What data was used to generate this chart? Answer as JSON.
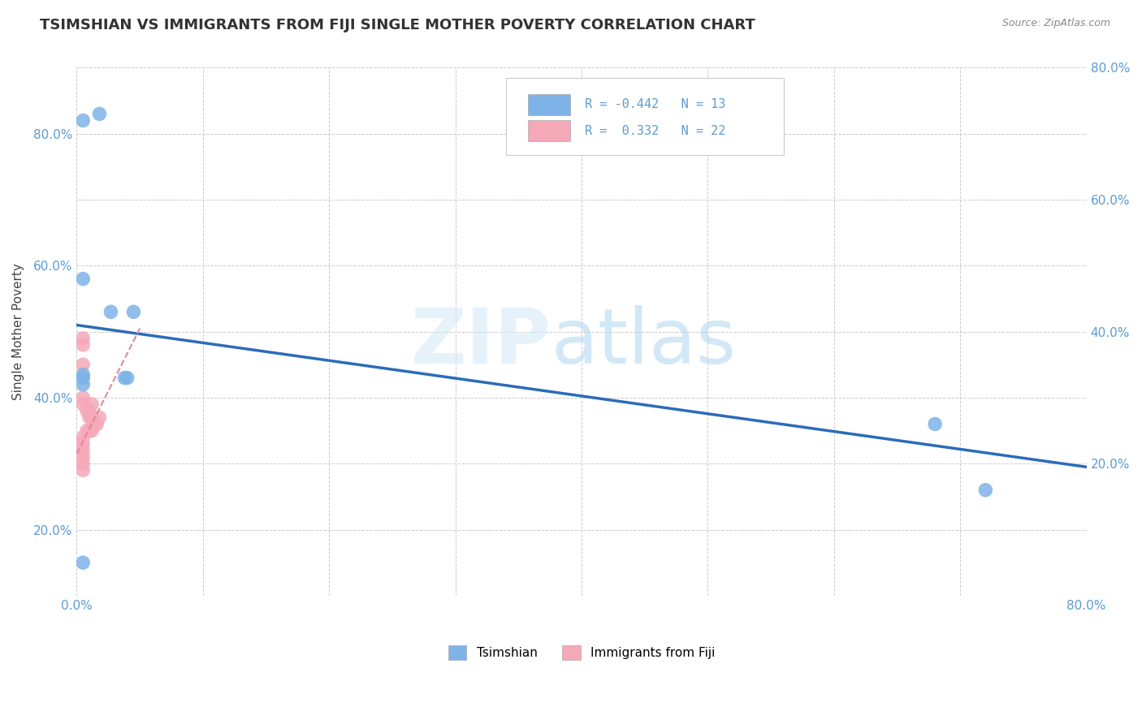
{
  "title": "TSIMSHIAN VS IMMIGRANTS FROM FIJI SINGLE MOTHER POVERTY CORRELATION CHART",
  "source": "Source: ZipAtlas.com",
  "ylabel": "Single Mother Poverty",
  "xlim": [
    0.0,
    0.8
  ],
  "ylim": [
    0.0,
    0.8
  ],
  "legend_label1": "Tsimshian",
  "legend_label2": "Immigrants from Fiji",
  "r1": "-0.442",
  "n1": "13",
  "r2": "0.332",
  "n2": "22",
  "color_tsimshian": "#7EB3E8",
  "color_fiji": "#F5A8B8",
  "color_tsimshian_line": "#2B6CB8",
  "color_fiji_line": "#E08898",
  "background": "#FFFFFF",
  "tsimshian_x": [
    0.005,
    0.018,
    0.005,
    0.027,
    0.045,
    0.005,
    0.038,
    0.04,
    0.005,
    0.005,
    0.68,
    0.72,
    0.005
  ],
  "tsimshian_y": [
    0.72,
    0.73,
    0.48,
    0.43,
    0.43,
    0.33,
    0.33,
    0.33,
    0.32,
    0.05,
    0.26,
    0.16,
    0.335
  ],
  "fiji_x": [
    0.005,
    0.005,
    0.005,
    0.005,
    0.005,
    0.008,
    0.01,
    0.012,
    0.01,
    0.012,
    0.014,
    0.016,
    0.018,
    0.008,
    0.01,
    0.012,
    0.005,
    0.005,
    0.005,
    0.005,
    0.005,
    0.005
  ],
  "fiji_y": [
    0.39,
    0.38,
    0.35,
    0.3,
    0.29,
    0.28,
    0.28,
    0.29,
    0.27,
    0.27,
    0.26,
    0.26,
    0.27,
    0.25,
    0.25,
    0.25,
    0.24,
    0.23,
    0.22,
    0.21,
    0.2,
    0.19
  ],
  "tsimshian_line_x": [
    0.0,
    0.8
  ],
  "tsimshian_line_y": [
    0.41,
    0.195
  ],
  "fiji_line_x": [
    0.0,
    0.05
  ],
  "fiji_line_y": [
    0.215,
    0.405
  ],
  "grid_color": "#CCCCCC",
  "tick_color": "#5B9BD5",
  "title_color": "#333333",
  "source_color": "#888888",
  "ylabel_color": "#444444"
}
